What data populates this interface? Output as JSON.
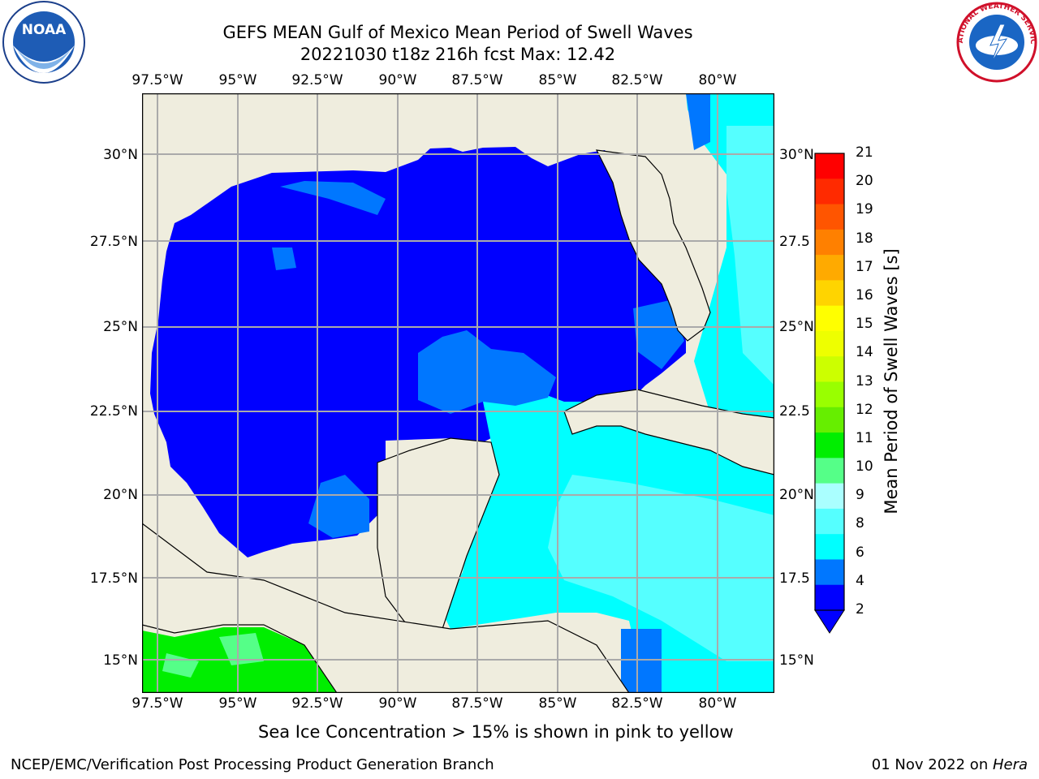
{
  "title_line1": "GEFS MEAN Gulf of Mexico Mean Period of Swell Waves",
  "title_line2": "20221030 t18z 216h fcst   Max: 12.42",
  "lon_labels": [
    "97.5°W",
    "95°W",
    "92.5°W",
    "90°W",
    "87.5°W",
    "85°W",
    "82.5°W",
    "80°W"
  ],
  "lat_labels_left": [
    "30°N",
    "27.5°N",
    "25°N",
    "22.5°N",
    "20°N",
    "17.5°N",
    "15°N"
  ],
  "lat_labels_right": [
    "30°N",
    "27.5",
    "25°N",
    "22.5",
    "20°N",
    "17.5",
    "15°N"
  ],
  "colorbar": {
    "label": "Mean Period of Swell Waves [s]",
    "ticks": [
      "21",
      "20",
      "19",
      "18",
      "17",
      "16",
      "15",
      "14",
      "13",
      "12",
      "11",
      "10",
      "9",
      "8",
      "6",
      "4",
      "2"
    ],
    "colors": [
      "#ff0000",
      "#ff2a00",
      "#ff5500",
      "#ff8000",
      "#ffaa00",
      "#ffd400",
      "#ffff00",
      "#eeff00",
      "#ccff00",
      "#99ff00",
      "#66ee00",
      "#00ee00",
      "#55ff88",
      "#aaffff",
      "#55ffff",
      "#00ffff",
      "#0077ff",
      "#0000ff"
    ]
  },
  "logos": {
    "left": "NOAA",
    "right": "NATIONAL WEATHER SERVICE"
  },
  "subtitle": "Sea Ice Concentration > 15% is shown in pink to yellow",
  "footer_left": "NCEP/EMC/Verification Post Processing Product Generation Branch",
  "footer_right_prefix": "01 Nov 2022 on ",
  "footer_right_host": "Hera"
}
